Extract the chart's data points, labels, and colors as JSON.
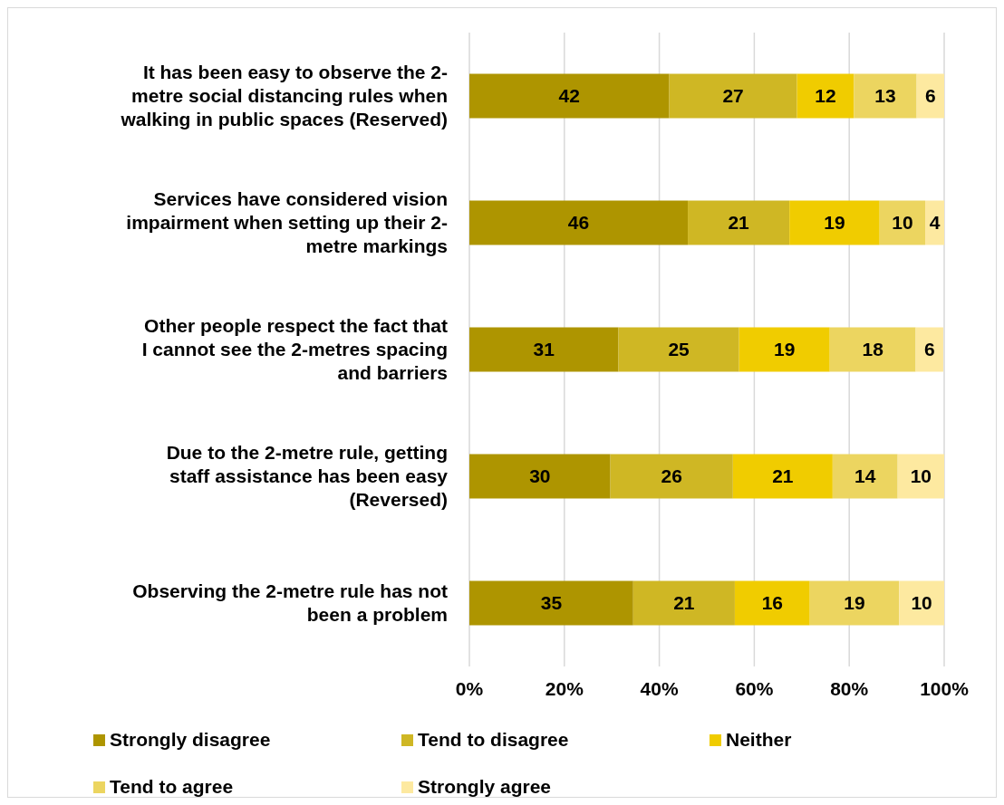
{
  "chart_data": {
    "type": "bar",
    "orientation": "horizontal",
    "stacked": true,
    "categories": [
      "It has been easy to observe the 2-metre social distancing rules when walking in public spaces (Reserved)",
      "Services have considered vision impairment when setting up their 2-metre markings",
      "Other people respect the fact that I cannot see the 2-metres spacing and barriers",
      "Due to the 2-metre rule, getting staff assistance has been easy (Reversed)",
      "Observing the 2-metre rule has not been a problem"
    ],
    "series": [
      {
        "name": "Strongly disagree",
        "color": "#ae9500",
        "values": [
          42.1,
          46,
          31.4,
          29.7,
          34.5
        ],
        "value_labels": [
          "42",
          "46",
          "31",
          "30",
          "35"
        ]
      },
      {
        "name": "Tend to disagree",
        "color": "#cfb724",
        "values": [
          26.9,
          21.4,
          25.4,
          25.8,
          21.4
        ],
        "value_labels": [
          "27",
          "21",
          "25",
          "26",
          "21"
        ]
      },
      {
        "name": "Neither",
        "color": "#f0cc00",
        "values": [
          12,
          19,
          19.1,
          21,
          15.8
        ],
        "value_labels": [
          "12",
          "19",
          "19",
          "21",
          "16"
        ]
      },
      {
        "name": "Tend to agree",
        "color": "#ecd560",
        "values": [
          13.2,
          9.6,
          18.1,
          13.7,
          18.8
        ],
        "value_labels": [
          "13",
          "10",
          "18",
          "14",
          "19"
        ]
      },
      {
        "name": "Strongly agree",
        "color": "#fde9a0",
        "values": [
          5.8,
          4,
          5.8,
          9.8,
          9.5
        ],
        "value_labels": [
          "6",
          "4",
          "6",
          "10",
          "10"
        ]
      }
    ],
    "xlim": [
      0,
      100
    ],
    "xticks": [
      {
        "value": 0,
        "label": "0%"
      },
      {
        "value": 20,
        "label": "20%"
      },
      {
        "value": 40,
        "label": "40%"
      },
      {
        "value": 60,
        "label": "60%"
      },
      {
        "value": 80,
        "label": "80%"
      },
      {
        "value": 100,
        "label": "100%"
      }
    ],
    "grid": "x",
    "legend": "bottom"
  }
}
